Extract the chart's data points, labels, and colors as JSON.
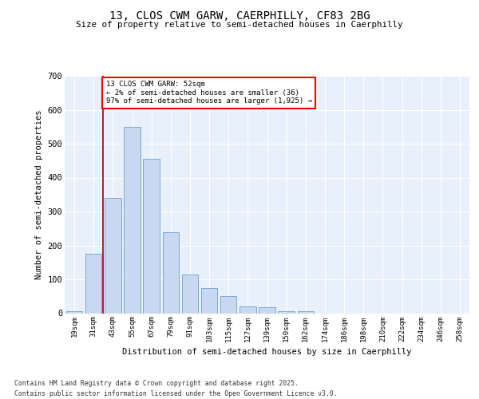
{
  "title_line1": "13, CLOS CWM GARW, CAERPHILLY, CF83 2BG",
  "title_line2": "Size of property relative to semi-detached houses in Caerphilly",
  "xlabel": "Distribution of semi-detached houses by size in Caerphilly",
  "ylabel": "Number of semi-detached properties",
  "categories": [
    "19sqm",
    "31sqm",
    "43sqm",
    "55sqm",
    "67sqm",
    "79sqm",
    "91sqm",
    "103sqm",
    "115sqm",
    "127sqm",
    "139sqm",
    "150sqm",
    "162sqm",
    "174sqm",
    "186sqm",
    "198sqm",
    "210sqm",
    "222sqm",
    "234sqm",
    "246sqm",
    "258sqm"
  ],
  "bar_values": [
    5,
    175,
    340,
    550,
    455,
    240,
    115,
    75,
    50,
    20,
    18,
    5,
    5,
    0,
    0,
    0,
    0,
    0,
    0,
    0,
    0
  ],
  "bar_color": "#c8d8f0",
  "bar_edge_color": "#7baad4",
  "red_line_x": 1.5,
  "annotation_title": "13 CLOS CWM GARW: 52sqm",
  "annotation_line1": "← 2% of semi-detached houses are smaller (36)",
  "annotation_line2": "97% of semi-detached houses are larger (1,925) →",
  "ylim": [
    0,
    700
  ],
  "yticks": [
    0,
    100,
    200,
    300,
    400,
    500,
    600,
    700
  ],
  "plot_bg_color": "#e8f0fc",
  "footer_line1": "Contains HM Land Registry data © Crown copyright and database right 2025.",
  "footer_line2": "Contains public sector information licensed under the Open Government Licence v3.0."
}
